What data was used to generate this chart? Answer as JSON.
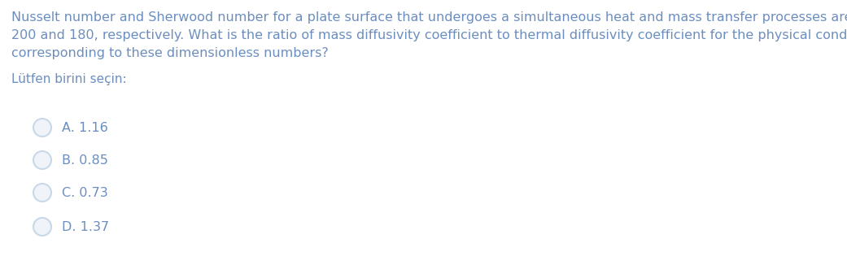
{
  "background_color": "#ffffff",
  "question_lines": [
    "Nusselt number and Sherwood number for a plate surface that undergoes a simultaneous heat and mass transfer processes are obtained as",
    "200 and 180, respectively. What is the ratio of mass diffusivity coefficient to thermal diffusivity coefficient for the physical condition",
    "corresponding to these dimensionless numbers?"
  ],
  "prompt_text": "Lütfen birini seçin:",
  "options": [
    "A. 1.16",
    "B. 0.85",
    "C. 0.73",
    "D. 1.37"
  ],
  "text_color": "#6c8ebf",
  "question_fontsize": 11.5,
  "prompt_fontsize": 11.0,
  "option_fontsize": 11.5,
  "radio_edge_color": "#c8d8e8",
  "radio_face_color": "#f0f4f8",
  "fig_width": 10.41,
  "fig_height": 3.31,
  "dpi": 100
}
